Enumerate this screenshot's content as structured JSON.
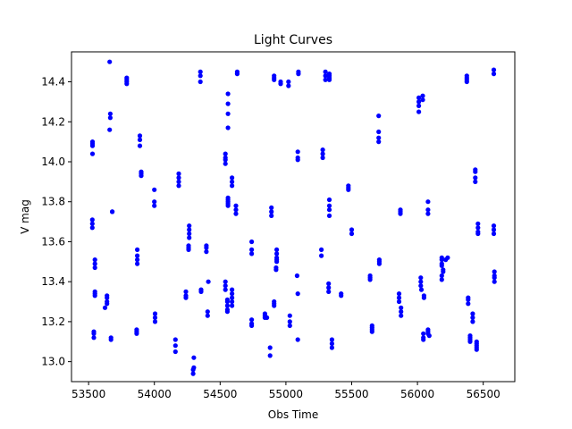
{
  "chart_data": {
    "type": "scatter",
    "title": "Light Curves",
    "xlabel": "Obs Time",
    "ylabel": "V mag",
    "xlim": [
      53370,
      56740
    ],
    "ylim": [
      12.9,
      14.55
    ],
    "xticks": [
      53500,
      54000,
      54500,
      55000,
      55500,
      56000,
      56500
    ],
    "yticks": [
      13.0,
      13.2,
      13.4,
      13.6,
      13.8,
      14.0,
      14.2,
      14.4
    ],
    "ytick_labels": [
      "13.0",
      "13.2",
      "13.4",
      "13.6",
      "13.8",
      "14.0",
      "14.2",
      "14.4"
    ],
    "grid": false,
    "marker_color": "#0000ff",
    "points": [
      [
        53530,
        14.1
      ],
      [
        53530,
        14.09
      ],
      [
        53530,
        14.08
      ],
      [
        53530,
        14.04
      ],
      [
        53528,
        13.71
      ],
      [
        53528,
        13.69
      ],
      [
        53528,
        13.67
      ],
      [
        53548,
        13.51
      ],
      [
        53548,
        13.49
      ],
      [
        53548,
        13.47
      ],
      [
        53548,
        13.35
      ],
      [
        53548,
        13.34
      ],
      [
        53548,
        13.33
      ],
      [
        53540,
        13.15
      ],
      [
        53540,
        13.14
      ],
      [
        53540,
        13.12
      ],
      [
        53640,
        13.33
      ],
      [
        53640,
        13.32
      ],
      [
        53640,
        13.3
      ],
      [
        53640,
        13.29
      ],
      [
        53625,
        13.27
      ],
      [
        53660,
        14.5
      ],
      [
        53665,
        14.24
      ],
      [
        53665,
        14.22
      ],
      [
        53660,
        14.16
      ],
      [
        53680,
        13.75
      ],
      [
        53680,
        13.75
      ],
      [
        53670,
        13.12
      ],
      [
        53670,
        13.11
      ],
      [
        53790,
        14.42
      ],
      [
        53790,
        14.41
      ],
      [
        53790,
        14.4
      ],
      [
        53790,
        14.39
      ],
      [
        53890,
        14.13
      ],
      [
        53890,
        14.11
      ],
      [
        53890,
        14.08
      ],
      [
        53900,
        13.95
      ],
      [
        53900,
        13.94
      ],
      [
        53900,
        13.93
      ],
      [
        53870,
        13.56
      ],
      [
        53870,
        13.53
      ],
      [
        53870,
        13.51
      ],
      [
        53870,
        13.49
      ],
      [
        53865,
        13.16
      ],
      [
        53865,
        13.15
      ],
      [
        53865,
        13.14
      ],
      [
        54000,
        13.86
      ],
      [
        54000,
        13.8
      ],
      [
        54000,
        13.78
      ],
      [
        54005,
        13.24
      ],
      [
        54005,
        13.22
      ],
      [
        54005,
        13.2
      ],
      [
        54160,
        13.11
      ],
      [
        54160,
        13.08
      ],
      [
        54160,
        13.05
      ],
      [
        54185,
        13.94
      ],
      [
        54185,
        13.92
      ],
      [
        54185,
        13.9
      ],
      [
        54185,
        13.88
      ],
      [
        54240,
        13.35
      ],
      [
        54240,
        13.33
      ],
      [
        54240,
        13.32
      ],
      [
        54265,
        13.68
      ],
      [
        54265,
        13.66
      ],
      [
        54265,
        13.64
      ],
      [
        54265,
        13.62
      ],
      [
        54260,
        13.58
      ],
      [
        54260,
        13.57
      ],
      [
        54260,
        13.56
      ],
      [
        54300,
        13.02
      ],
      [
        54300,
        12.97
      ],
      [
        54295,
        12.96
      ],
      [
        54295,
        12.94
      ],
      [
        54350,
        14.45
      ],
      [
        54350,
        14.43
      ],
      [
        54350,
        14.4
      ],
      [
        54355,
        13.36
      ],
      [
        54355,
        13.35
      ],
      [
        54395,
        13.58
      ],
      [
        54395,
        13.57
      ],
      [
        54395,
        13.55
      ],
      [
        54405,
        13.25
      ],
      [
        54405,
        13.23
      ],
      [
        54410,
        13.4
      ],
      [
        54540,
        14.04
      ],
      [
        54540,
        14.02
      ],
      [
        54540,
        14.01
      ],
      [
        54540,
        13.99
      ],
      [
        54540,
        13.4
      ],
      [
        54540,
        13.38
      ],
      [
        54540,
        13.36
      ],
      [
        54560,
        14.34
      ],
      [
        54560,
        14.29
      ],
      [
        54560,
        14.24
      ],
      [
        54560,
        14.17
      ],
      [
        54560,
        13.82
      ],
      [
        54560,
        13.81
      ],
      [
        54560,
        13.8
      ],
      [
        54560,
        13.79
      ],
      [
        54560,
        13.78
      ],
      [
        54555,
        13.31
      ],
      [
        54555,
        13.3
      ],
      [
        54555,
        13.28
      ],
      [
        54555,
        13.26
      ],
      [
        54555,
        13.25
      ],
      [
        54590,
        13.92
      ],
      [
        54590,
        13.9
      ],
      [
        54590,
        13.88
      ],
      [
        54590,
        13.36
      ],
      [
        54590,
        13.34
      ],
      [
        54590,
        13.32
      ],
      [
        54590,
        13.3
      ],
      [
        54590,
        13.28
      ],
      [
        54620,
        13.78
      ],
      [
        54620,
        13.76
      ],
      [
        54620,
        13.74
      ],
      [
        54630,
        14.45
      ],
      [
        54630,
        14.44
      ],
      [
        54740,
        13.6
      ],
      [
        54740,
        13.56
      ],
      [
        54740,
        13.54
      ],
      [
        54740,
        13.21
      ],
      [
        54740,
        13.19
      ],
      [
        54740,
        13.18
      ],
      [
        54840,
        13.24
      ],
      [
        54840,
        13.23
      ],
      [
        54840,
        13.22
      ],
      [
        54855,
        13.22
      ],
      [
        54880,
        13.07
      ],
      [
        54880,
        13.03
      ],
      [
        54890,
        13.77
      ],
      [
        54890,
        13.75
      ],
      [
        54890,
        13.73
      ],
      [
        54910,
        14.43
      ],
      [
        54910,
        14.42
      ],
      [
        54910,
        14.41
      ],
      [
        54910,
        13.3
      ],
      [
        54910,
        13.29
      ],
      [
        54910,
        13.28
      ],
      [
        54930,
        13.56
      ],
      [
        54930,
        13.54
      ],
      [
        54930,
        13.52
      ],
      [
        54930,
        13.51
      ],
      [
        54930,
        13.5
      ],
      [
        54925,
        13.47
      ],
      [
        54925,
        13.46
      ],
      [
        54960,
        14.4
      ],
      [
        54960,
        14.39
      ],
      [
        55020,
        14.4
      ],
      [
        55020,
        14.38
      ],
      [
        55030,
        13.23
      ],
      [
        55030,
        13.2
      ],
      [
        55030,
        13.18
      ],
      [
        55095,
        14.45
      ],
      [
        55095,
        14.44
      ],
      [
        55090,
        14.05
      ],
      [
        55090,
        14.02
      ],
      [
        55090,
        14.01
      ],
      [
        55085,
        13.43
      ],
      [
        55090,
        13.34
      ],
      [
        55090,
        13.11
      ],
      [
        55270,
        13.56
      ],
      [
        55270,
        13.53
      ],
      [
        55280,
        14.06
      ],
      [
        55280,
        14.04
      ],
      [
        55280,
        14.02
      ],
      [
        55300,
        14.45
      ],
      [
        55300,
        14.43
      ],
      [
        55300,
        14.41
      ],
      [
        55330,
        14.44
      ],
      [
        55330,
        14.43
      ],
      [
        55330,
        14.42
      ],
      [
        55330,
        14.41
      ],
      [
        55330,
        13.81
      ],
      [
        55330,
        13.78
      ],
      [
        55330,
        13.76
      ],
      [
        55330,
        13.73
      ],
      [
        55325,
        13.39
      ],
      [
        55325,
        13.37
      ],
      [
        55325,
        13.35
      ],
      [
        55350,
        13.11
      ],
      [
        55350,
        13.09
      ],
      [
        55350,
        13.07
      ],
      [
        55420,
        13.34
      ],
      [
        55420,
        13.33
      ],
      [
        55475,
        13.88
      ],
      [
        55475,
        13.87
      ],
      [
        55475,
        13.86
      ],
      [
        55500,
        13.66
      ],
      [
        55500,
        13.64
      ],
      [
        55640,
        13.43
      ],
      [
        55640,
        13.42
      ],
      [
        55640,
        13.41
      ],
      [
        55655,
        13.18
      ],
      [
        55655,
        13.17
      ],
      [
        55655,
        13.16
      ],
      [
        55655,
        13.15
      ],
      [
        55705,
        14.23
      ],
      [
        55705,
        14.15
      ],
      [
        55705,
        14.12
      ],
      [
        55705,
        14.1
      ],
      [
        55710,
        13.51
      ],
      [
        55710,
        13.5
      ],
      [
        55710,
        13.49
      ],
      [
        55860,
        13.34
      ],
      [
        55860,
        13.32
      ],
      [
        55860,
        13.3
      ],
      [
        55870,
        13.76
      ],
      [
        55870,
        13.75
      ],
      [
        55870,
        13.74
      ],
      [
        55875,
        13.27
      ],
      [
        55875,
        13.25
      ],
      [
        55875,
        13.23
      ],
      [
        56010,
        14.32
      ],
      [
        56010,
        14.3
      ],
      [
        56010,
        14.28
      ],
      [
        56010,
        14.25
      ],
      [
        56040,
        14.33
      ],
      [
        56040,
        14.31
      ],
      [
        56025,
        13.42
      ],
      [
        56025,
        13.4
      ],
      [
        56025,
        13.38
      ],
      [
        56030,
        13.36
      ],
      [
        56050,
        13.33
      ],
      [
        56050,
        13.32
      ],
      [
        56045,
        13.14
      ],
      [
        56045,
        13.12
      ],
      [
        56045,
        13.11
      ],
      [
        56080,
        13.8
      ],
      [
        56080,
        13.76
      ],
      [
        56080,
        13.74
      ],
      [
        56080,
        13.16
      ],
      [
        56080,
        13.15
      ],
      [
        56080,
        13.14
      ],
      [
        56090,
        13.13
      ],
      [
        56185,
        13.52
      ],
      [
        56185,
        13.51
      ],
      [
        56185,
        13.49
      ],
      [
        56185,
        13.48
      ],
      [
        56195,
        13.46
      ],
      [
        56195,
        13.45
      ],
      [
        56185,
        13.43
      ],
      [
        56185,
        13.41
      ],
      [
        56215,
        13.51
      ],
      [
        56230,
        13.52
      ],
      [
        56375,
        14.43
      ],
      [
        56375,
        14.42
      ],
      [
        56375,
        14.41
      ],
      [
        56375,
        14.4
      ],
      [
        56385,
        13.32
      ],
      [
        56385,
        13.31
      ],
      [
        56385,
        13.29
      ],
      [
        56400,
        13.13
      ],
      [
        56400,
        13.12
      ],
      [
        56400,
        13.11
      ],
      [
        56400,
        13.1
      ],
      [
        56420,
        13.24
      ],
      [
        56420,
        13.22
      ],
      [
        56420,
        13.2
      ],
      [
        56440,
        13.96
      ],
      [
        56440,
        13.95
      ],
      [
        56440,
        13.92
      ],
      [
        56440,
        13.9
      ],
      [
        56450,
        13.1
      ],
      [
        56450,
        13.09
      ],
      [
        56450,
        13.08
      ],
      [
        56450,
        13.07
      ],
      [
        56450,
        13.06
      ],
      [
        56460,
        13.69
      ],
      [
        56460,
        13.67
      ],
      [
        56460,
        13.65
      ],
      [
        56460,
        13.64
      ],
      [
        56580,
        14.46
      ],
      [
        56580,
        14.44
      ],
      [
        56580,
        13.68
      ],
      [
        56580,
        13.66
      ],
      [
        56580,
        13.64
      ],
      [
        56585,
        13.45
      ],
      [
        56585,
        13.43
      ],
      [
        56585,
        13.42
      ],
      [
        56585,
        13.4
      ]
    ]
  }
}
